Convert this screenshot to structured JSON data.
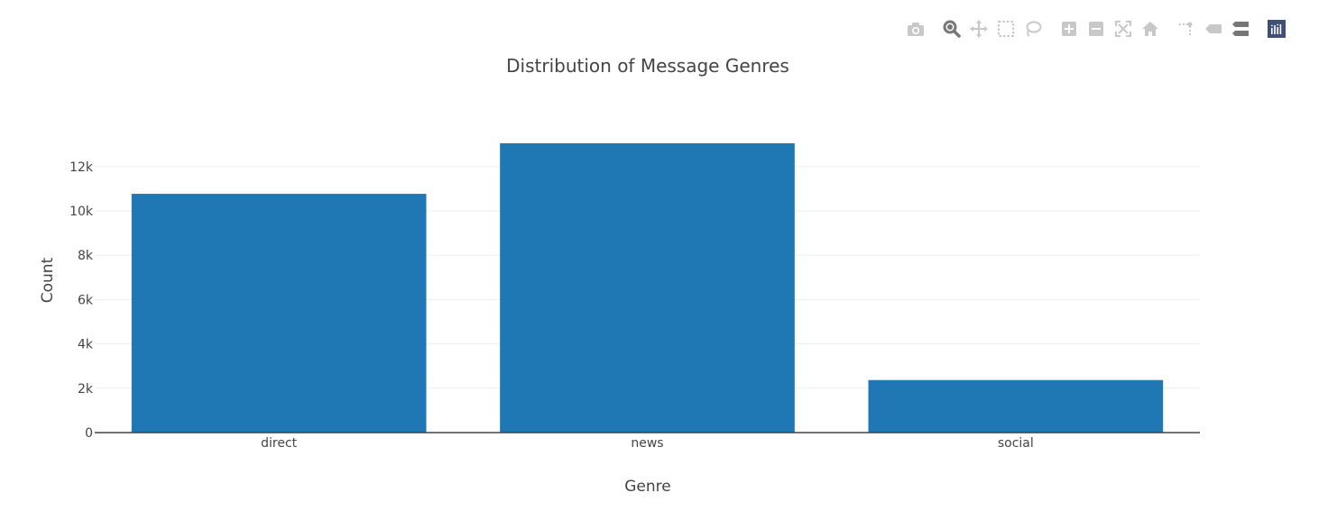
{
  "modebar": {
    "buttons": [
      "camera-icon",
      "zoom-icon",
      "pan-icon",
      "box-select-icon",
      "lasso-select-icon",
      "zoom-in-icon",
      "zoom-out-icon",
      "autoscale-icon",
      "reset-axes-icon",
      "spike-lines-icon",
      "hover-closest-icon",
      "hover-compare-icon",
      "plotly-logo-icon"
    ],
    "icon_color": "#c8c8c8",
    "active_color": "#777777",
    "logo_color": "#3f4f75"
  },
  "chart_data": {
    "type": "bar",
    "title": "Distribution of Message Genres",
    "xlabel": "Genre",
    "ylabel": "Count",
    "categories": [
      "direct",
      "news",
      "social"
    ],
    "values": [
      10770,
      13050,
      2370
    ],
    "ylim": [
      0,
      13700
    ],
    "yticks": [
      0,
      2000,
      4000,
      6000,
      8000,
      10000,
      12000
    ],
    "ytick_labels": [
      "0",
      "2k",
      "4k",
      "6k",
      "8k",
      "10k",
      "12k"
    ],
    "bar_color": "#1f77b4",
    "grid": true,
    "grid_color": "#eeeeee",
    "axis_line_color": "#444444"
  }
}
